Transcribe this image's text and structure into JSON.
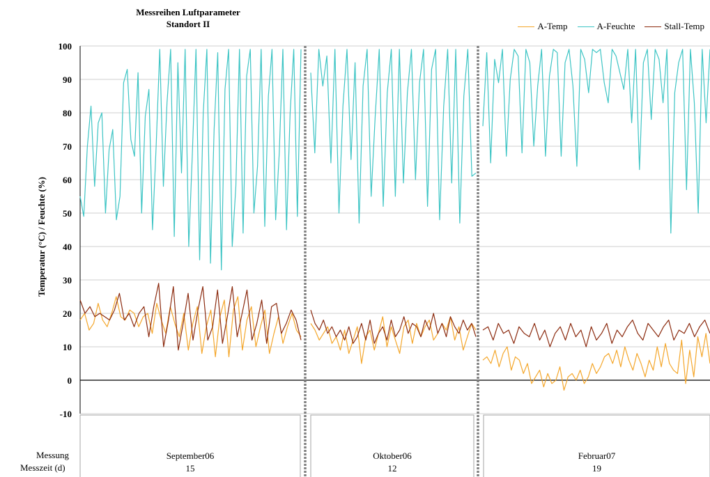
{
  "title_line1": "Messreihen Luftparameter",
  "title_line2": "Standort II",
  "footer": {
    "row1_label": "Messung",
    "row2_label": "Messzeit (d)"
  },
  "panels": [
    {
      "label": "September06",
      "days": "15"
    },
    {
      "label": "Oktober06",
      "days": "12"
    },
    {
      "label": "Februar07",
      "days": "19"
    }
  ],
  "colors": {
    "temp": "#f4a62a",
    "humidity": "#3cc4c4",
    "stall": "#8b2a0e",
    "divider": "#808080",
    "grid": "#bfbfbf"
  },
  "chart_data": {
    "type": "line",
    "ylabel": "Temperatur (°C) / Feuchte (%)",
    "ylim": [
      -10,
      100
    ],
    "yticks": [
      "-10",
      "0",
      "10",
      "20",
      "30",
      "40",
      "50",
      "60",
      "70",
      "80",
      "90",
      "100"
    ],
    "grid": true,
    "legend_position": "top-right",
    "series": [
      {
        "name": "A-Temp",
        "color": "#f4a62a",
        "segments": [
          [
            18,
            20,
            15,
            17,
            23,
            18,
            16,
            20,
            25,
            19,
            18,
            21,
            20,
            16,
            19,
            20,
            14,
            23,
            18,
            14,
            22,
            17,
            13,
            20,
            9,
            17,
            22,
            8,
            16,
            21,
            7,
            19,
            24,
            7,
            21,
            25,
            9,
            18,
            22,
            10,
            16,
            21,
            8,
            14,
            19,
            11,
            16,
            20,
            15,
            13
          ],
          [
            17,
            15,
            12,
            14,
            16,
            11,
            13,
            9,
            15,
            8,
            12,
            16,
            5,
            13,
            15,
            9,
            14,
            19,
            10,
            16,
            12,
            8,
            16,
            18,
            11,
            17,
            13,
            16,
            18,
            12,
            14,
            17,
            15,
            19,
            12,
            16,
            9,
            13,
            17,
            15
          ],
          [
            6,
            7,
            5,
            9,
            4,
            8,
            10,
            3,
            7,
            6,
            2,
            5,
            -1,
            1,
            3,
            -2,
            2,
            -1,
            0,
            4,
            -3,
            1,
            2,
            0,
            3,
            -1,
            1,
            5,
            2,
            4,
            7,
            8,
            5,
            9,
            4,
            10,
            6,
            3,
            8,
            5,
            1,
            6,
            3,
            10,
            4,
            11,
            5,
            3,
            2,
            12,
            -1,
            9,
            1,
            13,
            7,
            14,
            5
          ]
        ]
      },
      {
        "name": "A-Feuchte",
        "color": "#3cc4c4",
        "segments": [
          [
            55,
            49,
            70,
            82,
            58,
            77,
            80,
            50,
            69,
            75,
            48,
            55,
            89,
            93,
            72,
            67,
            92,
            50,
            79,
            87,
            45,
            70,
            99,
            58,
            83,
            99,
            43,
            95,
            62,
            99,
            40,
            68,
            99,
            36,
            80,
            99,
            35,
            75,
            98,
            33,
            87,
            99,
            40,
            58,
            99,
            44,
            91,
            99,
            50,
            64,
            99,
            46,
            85,
            99,
            48,
            68,
            99,
            45,
            80,
            99,
            49,
            99
          ],
          [
            92,
            68,
            99,
            88,
            97,
            65,
            99,
            50,
            82,
            99,
            66,
            95,
            47,
            88,
            99,
            55,
            79,
            99,
            52,
            86,
            99,
            55,
            99,
            59,
            86,
            99,
            60,
            89,
            99,
            52,
            93,
            99,
            48,
            82,
            99,
            59,
            99,
            47,
            85,
            99,
            61,
            62
          ],
          [
            76,
            98,
            65,
            96,
            89,
            99,
            67,
            90,
            99,
            97,
            68,
            99,
            95,
            70,
            88,
            99,
            67,
            91,
            99,
            98,
            67,
            95,
            99,
            88,
            64,
            99,
            96,
            86,
            99,
            98,
            99,
            89,
            83,
            99,
            97,
            92,
            87,
            99,
            77,
            99,
            63,
            95,
            99,
            78,
            99,
            96,
            83,
            99,
            44,
            86,
            95,
            99,
            57,
            99,
            83,
            50,
            99,
            77,
            99
          ]
        ]
      },
      {
        "name": "Stall-Temp",
        "color": "#8b2a0e",
        "segments": [
          [
            24,
            20,
            22,
            19,
            20,
            19,
            18,
            21,
            26,
            18,
            20,
            16,
            20,
            22,
            13,
            22,
            29,
            10,
            18,
            28,
            9,
            17,
            26,
            12,
            21,
            28,
            12,
            16,
            27,
            11,
            19,
            28,
            13,
            20,
            27,
            12,
            17,
            24,
            11,
            22,
            23,
            14,
            17,
            21,
            18,
            12
          ],
          [
            21,
            17,
            15,
            18,
            14,
            16,
            13,
            15,
            12,
            16,
            11,
            13,
            17,
            12,
            18,
            11,
            14,
            16,
            12,
            18,
            13,
            15,
            19,
            14,
            17,
            16,
            13,
            18,
            15,
            20,
            14,
            17,
            13,
            19,
            16,
            14,
            18,
            15,
            17,
            13
          ],
          [
            15,
            16,
            12,
            17,
            14,
            15,
            11,
            16,
            14,
            13,
            17,
            12,
            15,
            10,
            14,
            16,
            12,
            17,
            13,
            15,
            10,
            16,
            12,
            14,
            17,
            11,
            15,
            13,
            16,
            18,
            14,
            12,
            17,
            15,
            13,
            16,
            18,
            12,
            15,
            14,
            17,
            13,
            16,
            18,
            14
          ]
        ]
      }
    ],
    "x_panels": [
      "September06",
      "Oktober06",
      "Februar07"
    ]
  }
}
